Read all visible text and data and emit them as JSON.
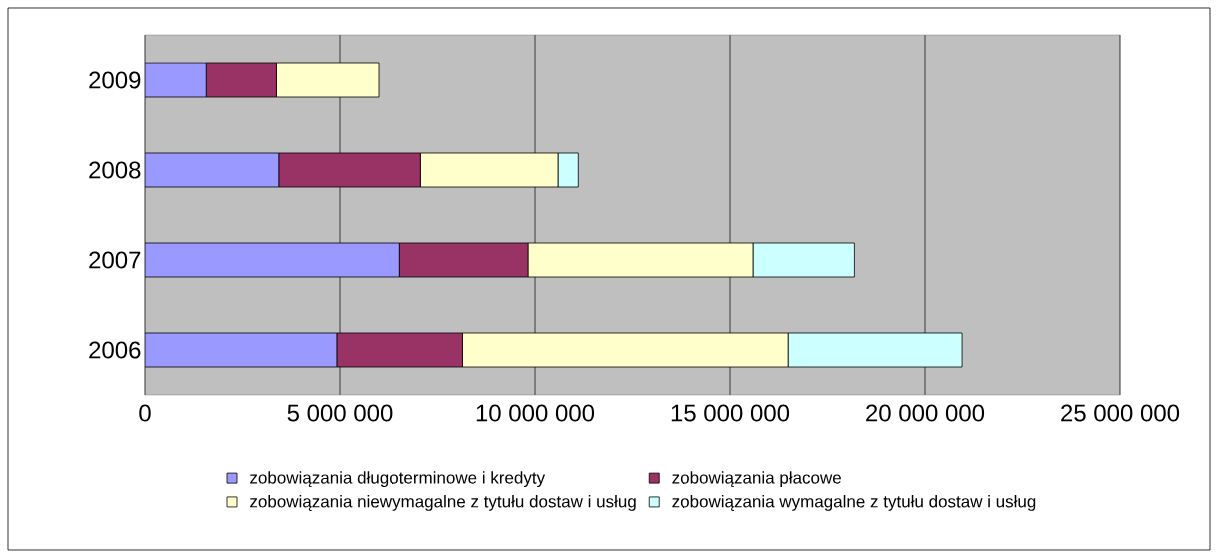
{
  "chart_data": {
    "type": "bar",
    "orientation": "horizontal",
    "stacked": true,
    "categories": [
      "2009",
      "2008",
      "2007",
      "2006"
    ],
    "series": [
      {
        "name": "zobowiązania długoterminowe i kredyty",
        "color": "#9999ff",
        "values": [
          1570000.0,
          3430000.0,
          6520000.0,
          4920000.0
        ]
      },
      {
        "name": "zobowiązania płacowe",
        "color": "#993366",
        "values": [
          1800000.0,
          3630000.0,
          3300000.0,
          3220000.0
        ]
      },
      {
        "name": "zobowiązania niewymagalne z tytułu dostaw i usług",
        "color": "#ffffcc",
        "values": [
          2630000.0,
          3530000.0,
          5770000.0,
          8350000.0
        ]
      },
      {
        "name": "zobowiązania wymagalne z tytułu dostaw i usług",
        "color": "#ccffff",
        "values": [
          0,
          520000.0,
          2600000.0,
          4460000.0
        ]
      }
    ],
    "xlim": [
      0,
      25000000
    ],
    "xticks": [
      0,
      {
        "value": 5000000,
        "label": "5 000 000"
      },
      {
        "value": 10000000,
        "label": "10 000 000"
      },
      {
        "value": 15000000,
        "label": "15 000 000"
      },
      {
        "value": 20000000,
        "label": "20 000 000"
      },
      {
        "value": 25000000,
        "label": "25 000 000"
      }
    ],
    "grid": "x",
    "legend": "bottom"
  }
}
